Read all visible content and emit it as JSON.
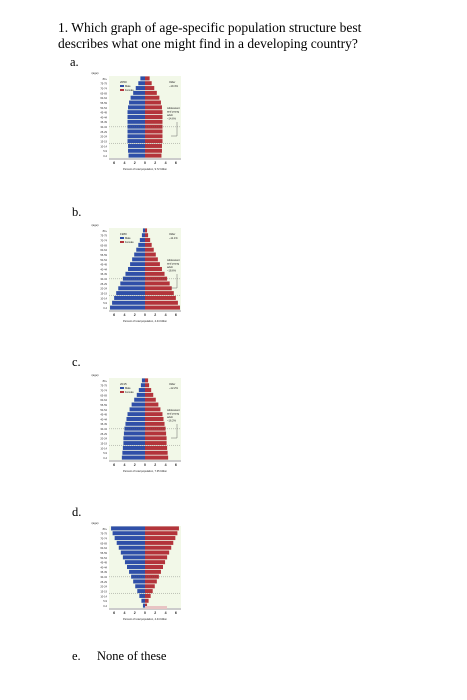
{
  "question": {
    "line1": "1. Which graph of age-specific population structure best",
    "line2": "describes what one might find in a developing country?"
  },
  "options": [
    {
      "letter": "a.",
      "pyramid": {
        "unit": "(age)",
        "year": "2050",
        "male": "Male",
        "female": "Female",
        "older": "Older",
        "older_pct": "~19.4%",
        "adol1": "Adolescent",
        "adol2": "and young",
        "adol3": "adult",
        "adol_pct": "~14.6%",
        "xlabel": "Percent of total population, 9.72 billion"
      }
    },
    {
      "letter": "b.",
      "pyramid": {
        "unit": "(age)",
        "year": "1980",
        "male": "Male",
        "female": "Female",
        "older": "Older",
        "older_pct": "~11.1%",
        "adol1": "Adolescent",
        "adol2": "and young",
        "adol3": "adult",
        "adol_pct": "~18.6%",
        "xlabel": "Percent of total population, 4.44 billion"
      }
    },
    {
      "letter": "c.",
      "pyramid": {
        "unit": "(age)",
        "year": "2015",
        "male": "Male",
        "female": "Female",
        "older": "Older",
        "older_pct": "~12.2%",
        "adol1": "Adolescent",
        "adol2": "and young",
        "adol3": "adult",
        "adol_pct": "~16.2%",
        "xlabel": "Percent of total population, 7.35 billion"
      }
    },
    {
      "letter": "d.",
      "pyramid": {
        "unit": "(age)",
        "xlabel": "Percent of total population, 4.44 billion"
      }
    },
    {
      "letter": "e.",
      "text": "None of these"
    }
  ],
  "age_labels": [
    "80+",
    "75-79",
    "70-74",
    "65-69",
    "60-64",
    "55-59",
    "50-54",
    "45-49",
    "40-44",
    "35-39",
    "30-34",
    "25-29",
    "20-24",
    "15-19",
    "10-14",
    "5-9",
    "0-4"
  ],
  "x_ticks": [
    "6",
    "4",
    "2",
    "0",
    "2",
    "4",
    "6"
  ],
  "bar_values": {
    "a": [
      0.9,
      1.3,
      1.8,
      2.3,
      2.8,
      3.1,
      3.3,
      3.4,
      3.4,
      3.4,
      3.4,
      3.4,
      3.4,
      3.4,
      3.3,
      3.3,
      3.2
    ],
    "b": [
      0.4,
      0.6,
      1.0,
      1.3,
      1.7,
      2.1,
      2.5,
      2.9,
      3.3,
      3.8,
      4.3,
      4.8,
      5.2,
      5.6,
      6.0,
      6.4,
      6.8
    ],
    "c": [
      0.6,
      0.8,
      1.2,
      1.6,
      2.1,
      2.6,
      3.0,
      3.4,
      3.6,
      3.8,
      4.0,
      4.1,
      4.2,
      4.2,
      4.3,
      4.4,
      4.5
    ],
    "d": [
      6.6,
      6.3,
      5.9,
      5.5,
      5.1,
      4.7,
      4.3,
      3.9,
      3.5,
      3.1,
      2.7,
      2.3,
      1.9,
      1.5,
      1.1,
      0.7,
      0.4
    ]
  },
  "colors": {
    "male": "#2f4fa8",
    "female": "#b3343b",
    "bg": "#f2f8e8",
    "axis": "#333333",
    "pink": "#e8c4c4"
  }
}
